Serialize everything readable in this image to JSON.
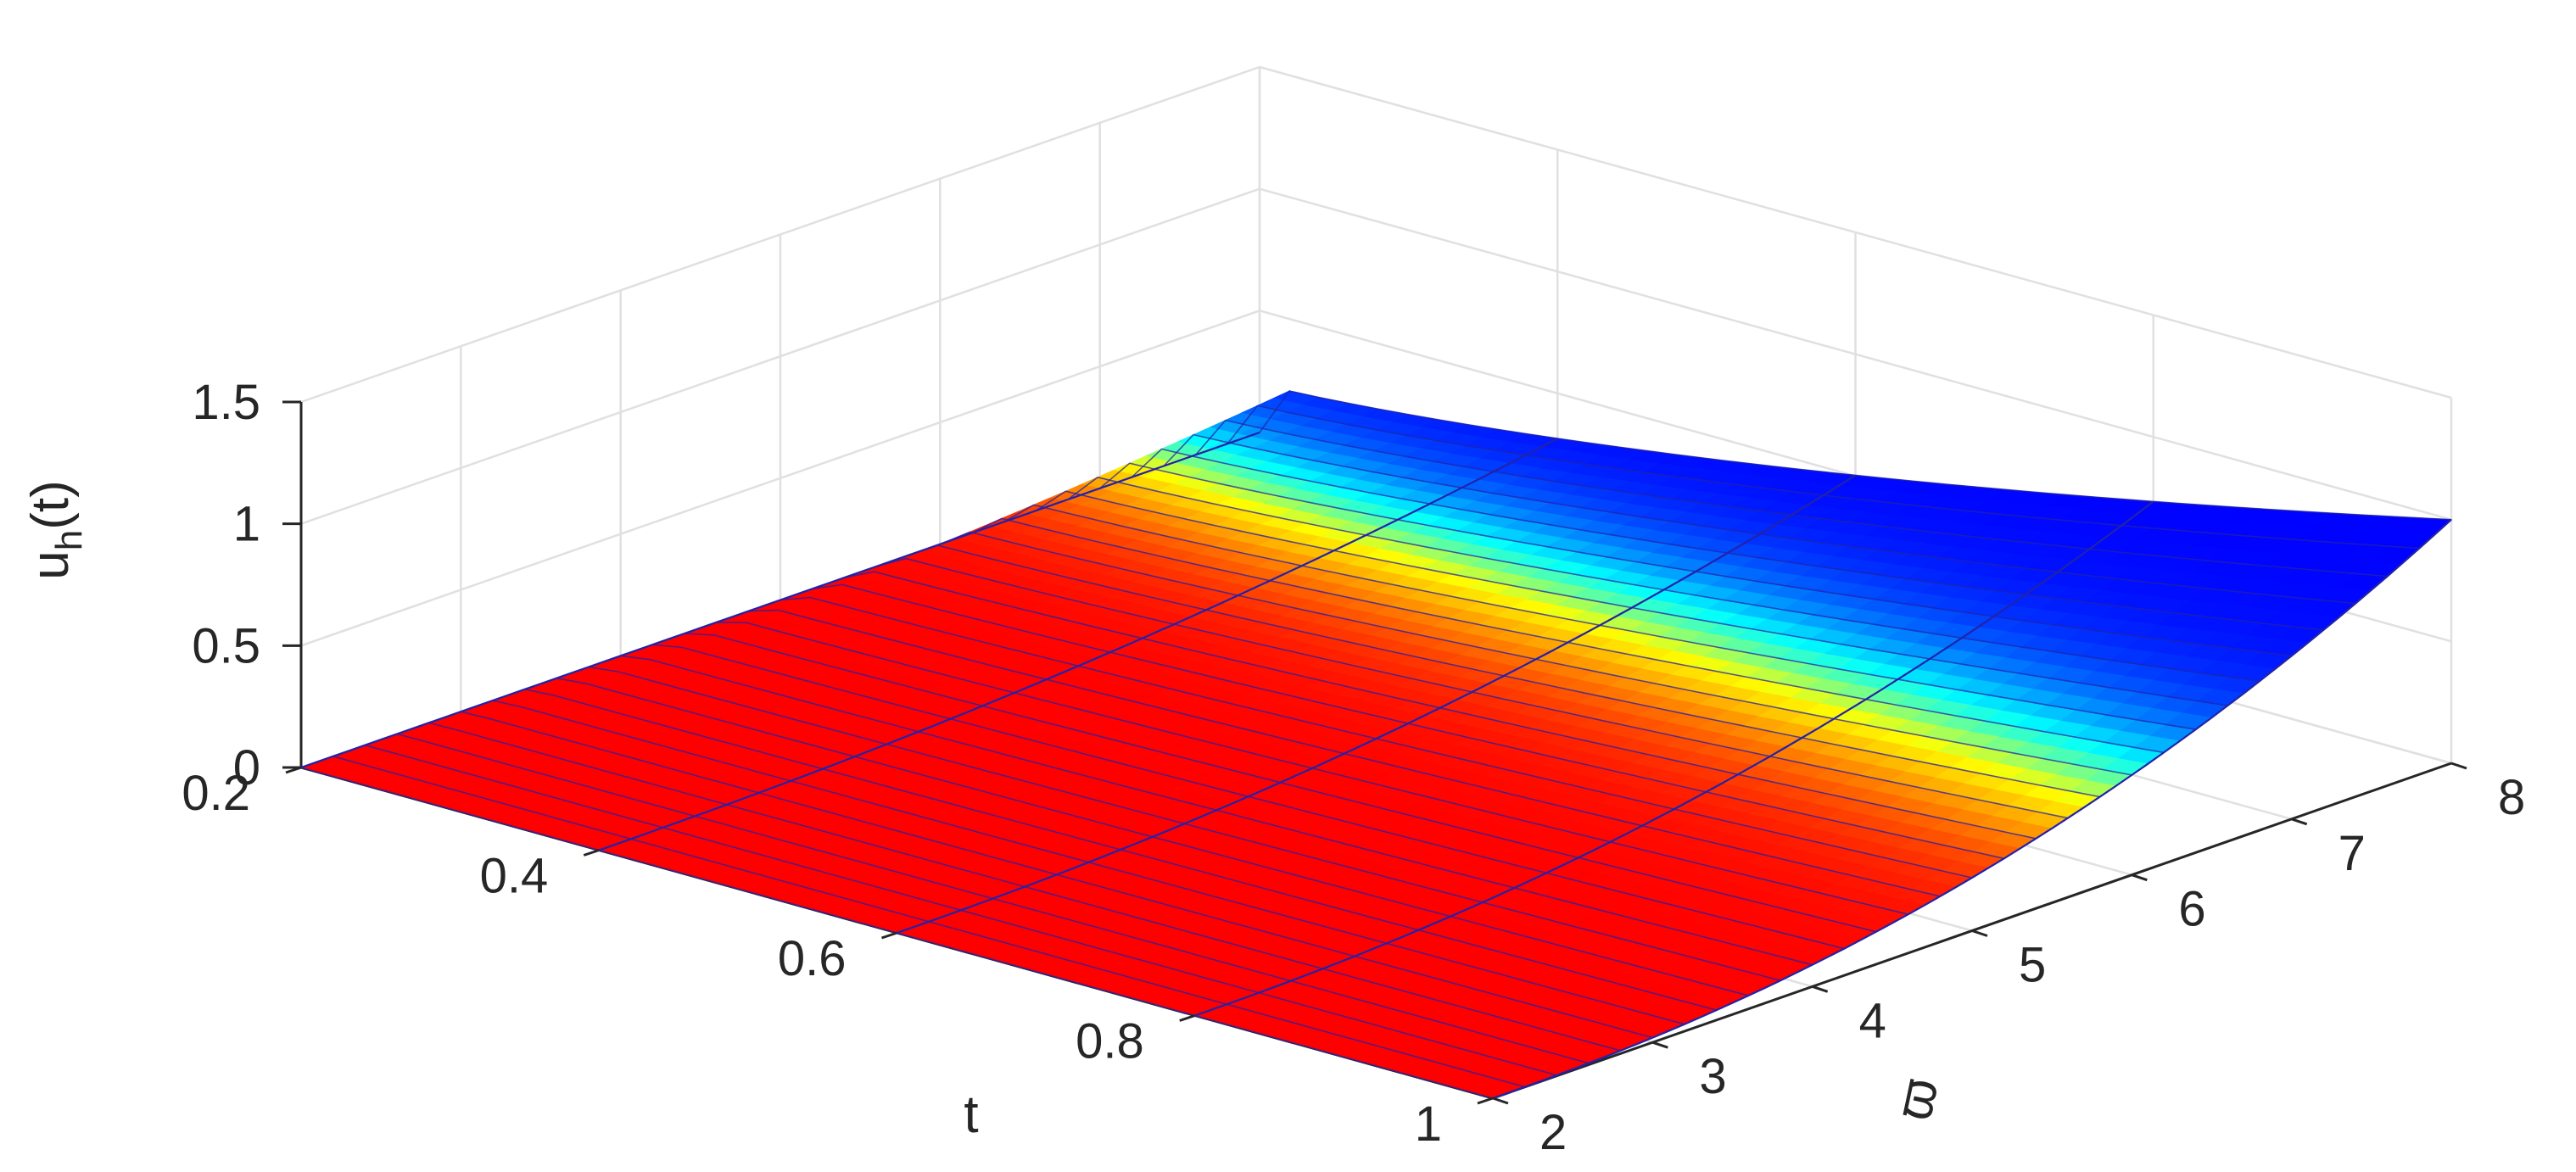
{
  "chart_data": {
    "type": "surface",
    "title": "",
    "xlabel": "t",
    "ylabel": "ϖ",
    "zlabel": "u",
    "zlabel_sub": "h",
    "zlabel_suffix": "(t)",
    "xlim": [
      0.2,
      1.0
    ],
    "ylim": [
      2,
      8
    ],
    "zlim": [
      0,
      1.5
    ],
    "x_ticks": [
      "0.2",
      "0.4",
      "0.6",
      "0.8",
      "1"
    ],
    "y_ticks": [
      "2",
      "3",
      "4",
      "5",
      "6",
      "7",
      "8"
    ],
    "z_ticks": [
      "0",
      "0.5",
      "1",
      "1.5"
    ],
    "grid": true,
    "colormap": [
      "#0000ff",
      "#00ffff",
      "#ffff00",
      "#ff8000",
      "#ff0000"
    ],
    "edge_color": "#2222aa",
    "samples": {
      "t": [
        0.2,
        0.4,
        0.6,
        0.8,
        1.0
      ],
      "varpi": [
        2,
        4,
        6,
        8
      ],
      "u_at_varpi_2": [
        0.0,
        0.0,
        0.0,
        0.0,
        0.0
      ],
      "u_at_varpi_4": [
        0.0,
        0.02,
        0.05,
        0.08,
        0.12
      ],
      "u_at_varpi_6": [
        0.0,
        0.08,
        0.15,
        0.25,
        0.35
      ],
      "u_at_varpi_8": [
        0.0,
        0.2,
        0.4,
        0.6,
        1.0
      ]
    }
  }
}
